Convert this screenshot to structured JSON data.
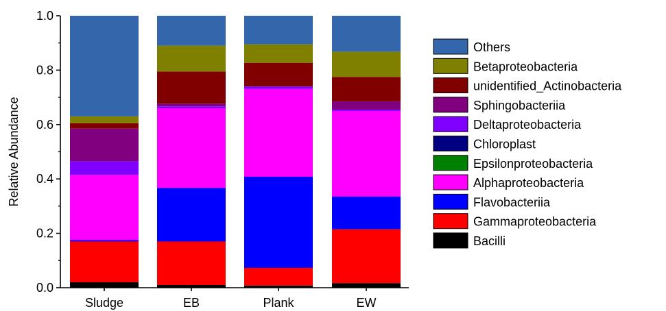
{
  "chart_data": {
    "type": "bar",
    "stacked": true,
    "categories": [
      "Sludge",
      "EB",
      "Plank",
      "EW"
    ],
    "ylabel": "Relative Abundance",
    "ylim": [
      0,
      1.0
    ],
    "yticks": [
      "0.0",
      "0.2",
      "0.4",
      "0.6",
      "0.8",
      "1.0"
    ],
    "legend_position": "right",
    "series": [
      {
        "name": "Bacilli",
        "color": "#000000",
        "values": [
          0.02,
          0.01,
          0.008,
          0.017
        ]
      },
      {
        "name": "Gammaproteobacteria",
        "color": "#ff0000",
        "values": [
          0.15,
          0.16,
          0.065,
          0.198
        ]
      },
      {
        "name": "Flavobacteriia",
        "color": "#0000ff",
        "values": [
          0.005,
          0.197,
          0.335,
          0.12
        ]
      },
      {
        "name": "Alphaproteobacteria",
        "color": "#ff00ff",
        "values": [
          0.24,
          0.293,
          0.323,
          0.315
        ]
      },
      {
        "name": "Epsilonproteobacteria",
        "color": "#008000",
        "values": [
          0.0,
          0.0,
          0.0,
          0.0
        ]
      },
      {
        "name": "Chloroplast",
        "color": "#000080",
        "values": [
          0.0,
          0.0,
          0.0,
          0.0
        ]
      },
      {
        "name": "Deltaproteobacteria",
        "color": "#8000ff",
        "values": [
          0.05,
          0.007,
          0.009,
          0.005
        ]
      },
      {
        "name": "Sphingobacteriia",
        "color": "#800080",
        "values": [
          0.12,
          0.01,
          0.0,
          0.03
        ]
      },
      {
        "name": "unidentified_Actinobacteria",
        "color": "#800000",
        "values": [
          0.02,
          0.118,
          0.087,
          0.09
        ]
      },
      {
        "name": "Betaproteobacteria",
        "color": "#808000",
        "values": [
          0.025,
          0.095,
          0.068,
          0.093
        ]
      },
      {
        "name": "Others",
        "color": "#3366aa",
        "values": [
          0.37,
          0.11,
          0.105,
          0.132
        ]
      }
    ]
  }
}
